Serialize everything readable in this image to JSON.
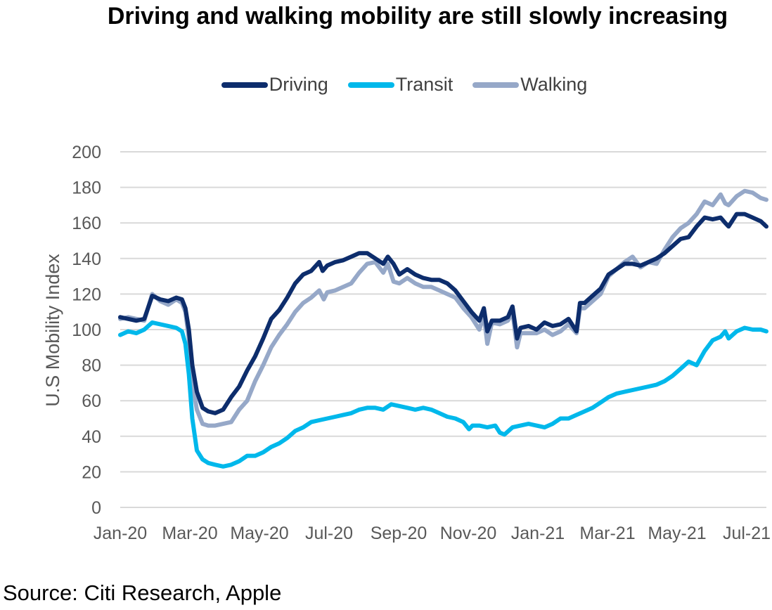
{
  "chart_data": {
    "type": "line",
    "title": "Driving and walking mobility are still slowly increasing",
    "ylabel": "U.S Mobility Index",
    "xlabel": "",
    "ylim": [
      0,
      200
    ],
    "yticks": [
      0,
      20,
      40,
      60,
      80,
      100,
      120,
      140,
      160,
      180,
      200
    ],
    "xticks": [
      "Jan-20",
      "Mar-20",
      "May-20",
      "Jul-20",
      "Sep-20",
      "Nov-20",
      "Jan-21",
      "Mar-21",
      "May-21",
      "Jul-21"
    ],
    "x_range": [
      "2020-01-13",
      "2021-07-31"
    ],
    "grid": true,
    "legend_position": "top-center",
    "series": [
      {
        "name": "Driving",
        "color": "#0d2d6c",
        "points": [
          [
            "2020-01-13",
            107
          ],
          [
            "2020-01-20",
            106
          ],
          [
            "2020-01-27",
            105
          ],
          [
            "2020-02-03",
            106
          ],
          [
            "2020-02-10",
            119
          ],
          [
            "2020-02-17",
            117
          ],
          [
            "2020-02-24",
            116
          ],
          [
            "2020-03-02",
            118
          ],
          [
            "2020-03-07",
            117
          ],
          [
            "2020-03-10",
            112
          ],
          [
            "2020-03-13",
            100
          ],
          [
            "2020-03-16",
            80
          ],
          [
            "2020-03-20",
            65
          ],
          [
            "2020-03-25",
            56
          ],
          [
            "2020-03-30",
            54
          ],
          [
            "2020-04-05",
            53
          ],
          [
            "2020-04-12",
            55
          ],
          [
            "2020-04-19",
            62
          ],
          [
            "2020-04-26",
            68
          ],
          [
            "2020-05-03",
            77
          ],
          [
            "2020-05-10",
            85
          ],
          [
            "2020-05-17",
            95
          ],
          [
            "2020-05-24",
            106
          ],
          [
            "2020-05-31",
            111
          ],
          [
            "2020-06-07",
            118
          ],
          [
            "2020-06-14",
            126
          ],
          [
            "2020-06-21",
            131
          ],
          [
            "2020-06-28",
            133
          ],
          [
            "2020-07-05",
            138
          ],
          [
            "2020-07-08",
            133
          ],
          [
            "2020-07-12",
            136
          ],
          [
            "2020-07-19",
            138
          ],
          [
            "2020-07-26",
            139
          ],
          [
            "2020-08-02",
            141
          ],
          [
            "2020-08-09",
            143
          ],
          [
            "2020-08-16",
            143
          ],
          [
            "2020-08-23",
            140
          ],
          [
            "2020-08-30",
            137
          ],
          [
            "2020-09-03",
            141
          ],
          [
            "2020-09-08",
            137
          ],
          [
            "2020-09-13",
            131
          ],
          [
            "2020-09-20",
            134
          ],
          [
            "2020-09-27",
            131
          ],
          [
            "2020-10-04",
            129
          ],
          [
            "2020-10-11",
            128
          ],
          [
            "2020-10-18",
            128
          ],
          [
            "2020-10-25",
            126
          ],
          [
            "2020-11-01",
            122
          ],
          [
            "2020-11-08",
            116
          ],
          [
            "2020-11-15",
            110
          ],
          [
            "2020-11-22",
            105
          ],
          [
            "2020-11-26",
            112
          ],
          [
            "2020-11-29",
            99
          ],
          [
            "2020-12-03",
            105
          ],
          [
            "2020-12-10",
            105
          ],
          [
            "2020-12-17",
            107
          ],
          [
            "2020-12-21",
            113
          ],
          [
            "2020-12-25",
            95
          ],
          [
            "2020-12-28",
            101
          ],
          [
            "2021-01-04",
            102
          ],
          [
            "2021-01-11",
            100
          ],
          [
            "2021-01-18",
            104
          ],
          [
            "2021-01-25",
            102
          ],
          [
            "2021-02-01",
            103
          ],
          [
            "2021-02-08",
            106
          ],
          [
            "2021-02-15",
            99
          ],
          [
            "2021-02-18",
            115
          ],
          [
            "2021-02-22",
            115
          ],
          [
            "2021-03-01",
            119
          ],
          [
            "2021-03-08",
            123
          ],
          [
            "2021-03-15",
            131
          ],
          [
            "2021-03-22",
            134
          ],
          [
            "2021-03-29",
            137
          ],
          [
            "2021-04-05",
            137
          ],
          [
            "2021-04-12",
            136
          ],
          [
            "2021-04-19",
            138
          ],
          [
            "2021-04-26",
            140
          ],
          [
            "2021-05-03",
            143
          ],
          [
            "2021-05-10",
            147
          ],
          [
            "2021-05-17",
            151
          ],
          [
            "2021-05-24",
            152
          ],
          [
            "2021-05-31",
            158
          ],
          [
            "2021-06-07",
            163
          ],
          [
            "2021-06-14",
            162
          ],
          [
            "2021-06-21",
            163
          ],
          [
            "2021-06-25",
            160
          ],
          [
            "2021-06-28",
            158
          ],
          [
            "2021-07-05",
            165
          ],
          [
            "2021-07-12",
            165
          ],
          [
            "2021-07-19",
            163
          ],
          [
            "2021-07-26",
            161
          ],
          [
            "2021-07-31",
            158
          ]
        ]
      },
      {
        "name": "Transit",
        "color": "#00b8eb",
        "points": [
          [
            "2020-01-13",
            97
          ],
          [
            "2020-01-20",
            99
          ],
          [
            "2020-01-27",
            98
          ],
          [
            "2020-02-03",
            100
          ],
          [
            "2020-02-10",
            104
          ],
          [
            "2020-02-17",
            103
          ],
          [
            "2020-02-24",
            102
          ],
          [
            "2020-03-02",
            101
          ],
          [
            "2020-03-07",
            99
          ],
          [
            "2020-03-10",
            92
          ],
          [
            "2020-03-13",
            75
          ],
          [
            "2020-03-16",
            50
          ],
          [
            "2020-03-20",
            32
          ],
          [
            "2020-03-25",
            27
          ],
          [
            "2020-03-30",
            25
          ],
          [
            "2020-04-05",
            24
          ],
          [
            "2020-04-12",
            23
          ],
          [
            "2020-04-19",
            24
          ],
          [
            "2020-04-26",
            26
          ],
          [
            "2020-05-03",
            29
          ],
          [
            "2020-05-10",
            29
          ],
          [
            "2020-05-17",
            31
          ],
          [
            "2020-05-24",
            34
          ],
          [
            "2020-05-31",
            36
          ],
          [
            "2020-06-07",
            39
          ],
          [
            "2020-06-14",
            43
          ],
          [
            "2020-06-21",
            45
          ],
          [
            "2020-06-28",
            48
          ],
          [
            "2020-07-05",
            49
          ],
          [
            "2020-07-12",
            50
          ],
          [
            "2020-07-19",
            51
          ],
          [
            "2020-07-26",
            52
          ],
          [
            "2020-08-02",
            53
          ],
          [
            "2020-08-09",
            55
          ],
          [
            "2020-08-16",
            56
          ],
          [
            "2020-08-23",
            56
          ],
          [
            "2020-08-30",
            55
          ],
          [
            "2020-09-06",
            58
          ],
          [
            "2020-09-13",
            57
          ],
          [
            "2020-09-20",
            56
          ],
          [
            "2020-09-27",
            55
          ],
          [
            "2020-10-04",
            56
          ],
          [
            "2020-10-11",
            55
          ],
          [
            "2020-10-18",
            53
          ],
          [
            "2020-10-25",
            51
          ],
          [
            "2020-11-01",
            50
          ],
          [
            "2020-11-08",
            48
          ],
          [
            "2020-11-13",
            44
          ],
          [
            "2020-11-16",
            46
          ],
          [
            "2020-11-22",
            46
          ],
          [
            "2020-11-29",
            45
          ],
          [
            "2020-12-06",
            46
          ],
          [
            "2020-12-10",
            42
          ],
          [
            "2020-12-14",
            41
          ],
          [
            "2020-12-21",
            45
          ],
          [
            "2020-12-28",
            46
          ],
          [
            "2021-01-04",
            47
          ],
          [
            "2021-01-11",
            46
          ],
          [
            "2021-01-18",
            45
          ],
          [
            "2021-01-25",
            47
          ],
          [
            "2021-02-01",
            50
          ],
          [
            "2021-02-08",
            50
          ],
          [
            "2021-02-15",
            52
          ],
          [
            "2021-02-22",
            54
          ],
          [
            "2021-03-01",
            56
          ],
          [
            "2021-03-08",
            59
          ],
          [
            "2021-03-15",
            62
          ],
          [
            "2021-03-22",
            64
          ],
          [
            "2021-03-29",
            65
          ],
          [
            "2021-04-05",
            66
          ],
          [
            "2021-04-12",
            67
          ],
          [
            "2021-04-19",
            68
          ],
          [
            "2021-04-26",
            69
          ],
          [
            "2021-05-03",
            71
          ],
          [
            "2021-05-10",
            74
          ],
          [
            "2021-05-17",
            78
          ],
          [
            "2021-05-24",
            82
          ],
          [
            "2021-05-31",
            80
          ],
          [
            "2021-06-07",
            88
          ],
          [
            "2021-06-14",
            94
          ],
          [
            "2021-06-21",
            96
          ],
          [
            "2021-06-25",
            99
          ],
          [
            "2021-06-28",
            95
          ],
          [
            "2021-07-05",
            99
          ],
          [
            "2021-07-12",
            101
          ],
          [
            "2021-07-19",
            100
          ],
          [
            "2021-07-26",
            100
          ],
          [
            "2021-07-31",
            99
          ]
        ]
      },
      {
        "name": "Walking",
        "color": "#96a8c8",
        "points": [
          [
            "2020-01-13",
            106
          ],
          [
            "2020-01-20",
            107
          ],
          [
            "2020-01-27",
            106
          ],
          [
            "2020-02-03",
            105
          ],
          [
            "2020-02-10",
            120
          ],
          [
            "2020-02-17",
            116
          ],
          [
            "2020-02-24",
            114
          ],
          [
            "2020-03-02",
            117
          ],
          [
            "2020-03-07",
            115
          ],
          [
            "2020-03-10",
            110
          ],
          [
            "2020-03-13",
            95
          ],
          [
            "2020-03-16",
            70
          ],
          [
            "2020-03-20",
            55
          ],
          [
            "2020-03-25",
            47
          ],
          [
            "2020-03-30",
            46
          ],
          [
            "2020-04-05",
            46
          ],
          [
            "2020-04-12",
            47
          ],
          [
            "2020-04-19",
            48
          ],
          [
            "2020-04-26",
            55
          ],
          [
            "2020-05-03",
            60
          ],
          [
            "2020-05-10",
            71
          ],
          [
            "2020-05-17",
            80
          ],
          [
            "2020-05-24",
            90
          ],
          [
            "2020-05-31",
            97
          ],
          [
            "2020-06-07",
            103
          ],
          [
            "2020-06-14",
            110
          ],
          [
            "2020-06-21",
            115
          ],
          [
            "2020-06-28",
            118
          ],
          [
            "2020-07-05",
            122
          ],
          [
            "2020-07-09",
            117
          ],
          [
            "2020-07-12",
            121
          ],
          [
            "2020-07-19",
            122
          ],
          [
            "2020-07-26",
            124
          ],
          [
            "2020-08-02",
            126
          ],
          [
            "2020-08-09",
            132
          ],
          [
            "2020-08-16",
            137
          ],
          [
            "2020-08-23",
            138
          ],
          [
            "2020-08-30",
            132
          ],
          [
            "2020-09-03",
            137
          ],
          [
            "2020-09-08",
            127
          ],
          [
            "2020-09-13",
            126
          ],
          [
            "2020-09-20",
            129
          ],
          [
            "2020-09-27",
            126
          ],
          [
            "2020-10-04",
            124
          ],
          [
            "2020-10-11",
            124
          ],
          [
            "2020-10-18",
            122
          ],
          [
            "2020-10-25",
            120
          ],
          [
            "2020-11-01",
            118
          ],
          [
            "2020-11-08",
            112
          ],
          [
            "2020-11-15",
            107
          ],
          [
            "2020-11-22",
            100
          ],
          [
            "2020-11-26",
            108
          ],
          [
            "2020-11-29",
            92
          ],
          [
            "2020-12-03",
            104
          ],
          [
            "2020-12-10",
            103
          ],
          [
            "2020-12-17",
            105
          ],
          [
            "2020-12-21",
            110
          ],
          [
            "2020-12-25",
            90
          ],
          [
            "2020-12-28",
            98
          ],
          [
            "2021-01-04",
            98
          ],
          [
            "2021-01-11",
            98
          ],
          [
            "2021-01-18",
            100
          ],
          [
            "2021-01-25",
            97
          ],
          [
            "2021-02-01",
            99
          ],
          [
            "2021-02-08",
            103
          ],
          [
            "2021-02-15",
            98
          ],
          [
            "2021-02-18",
            112
          ],
          [
            "2021-02-22",
            112
          ],
          [
            "2021-03-01",
            116
          ],
          [
            "2021-03-08",
            120
          ],
          [
            "2021-03-15",
            130
          ],
          [
            "2021-03-22",
            134
          ],
          [
            "2021-03-29",
            138
          ],
          [
            "2021-04-05",
            141
          ],
          [
            "2021-04-12",
            135
          ],
          [
            "2021-04-19",
            138
          ],
          [
            "2021-04-26",
            137
          ],
          [
            "2021-05-03",
            145
          ],
          [
            "2021-05-10",
            152
          ],
          [
            "2021-05-17",
            157
          ],
          [
            "2021-05-24",
            160
          ],
          [
            "2021-05-31",
            165
          ],
          [
            "2021-06-07",
            172
          ],
          [
            "2021-06-14",
            170
          ],
          [
            "2021-06-21",
            176
          ],
          [
            "2021-06-25",
            171
          ],
          [
            "2021-06-28",
            170
          ],
          [
            "2021-07-05",
            175
          ],
          [
            "2021-07-12",
            178
          ],
          [
            "2021-07-19",
            177
          ],
          [
            "2021-07-26",
            174
          ],
          [
            "2021-07-31",
            173
          ]
        ]
      }
    ]
  },
  "source": "Source: Citi Research, Apple"
}
